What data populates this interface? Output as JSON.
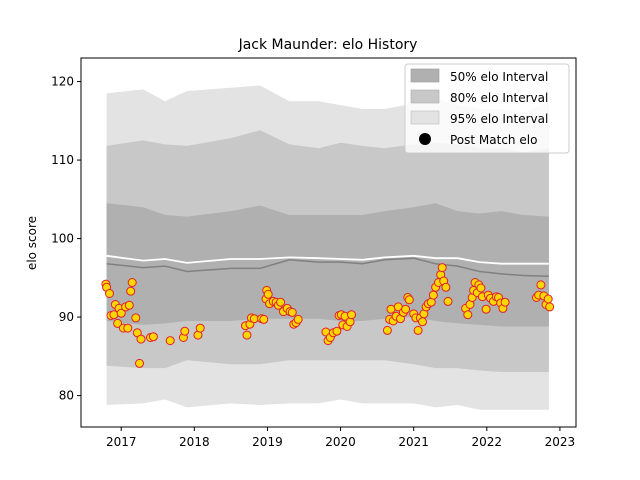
{
  "chart_data": {
    "type": "scatter",
    "title": "Jack Maunder: elo History",
    "xlabel": "",
    "ylabel": "elo score",
    "xlim": [
      2016.45,
      2023.22
    ],
    "ylim": [
      76,
      123
    ],
    "x_ticks": [
      2017,
      2018,
      2019,
      2020,
      2021,
      2022,
      2023
    ],
    "y_ticks": [
      80,
      90,
      100,
      110,
      120
    ],
    "grid": false,
    "legend_position": "top-right",
    "legend": [
      {
        "label": "50% elo Interval",
        "kind": "band",
        "color": "#b0b0b0"
      },
      {
        "label": "80% elo Interval",
        "kind": "band",
        "color": "#c8c8c8"
      },
      {
        "label": "95% elo Interval",
        "kind": "band",
        "color": "#e3e3e3"
      },
      {
        "label": "Post Match elo",
        "kind": "marker",
        "color": "#000000"
      }
    ],
    "colors": {
      "band50": "#b0b0b0",
      "band80": "#c8c8c8",
      "band95": "#e3e3e3",
      "dark_line": "#808080",
      "mean_line": "#ffffff",
      "point_fill": "#ffd700",
      "point_edge": "#e0202a"
    },
    "bands": {
      "x": [
        2016.8,
        2017.3,
        2017.6,
        2017.9,
        2018.5,
        2018.9,
        2019.3,
        2019.7,
        2020.0,
        2020.3,
        2020.6,
        2021.0,
        2021.3,
        2021.6,
        2021.9,
        2022.2,
        2022.5,
        2022.85
      ],
      "band95_upper": [
        118.5,
        119.0,
        117.5,
        118.8,
        119.2,
        119.5,
        117.5,
        117.5,
        117.0,
        116.5,
        116.5,
        117.2,
        117.8,
        117.0,
        116.5,
        116.5,
        116.0,
        117.5
      ],
      "band95_lower": [
        78.8,
        79.0,
        79.5,
        78.5,
        79.0,
        78.8,
        79.0,
        79.0,
        79.5,
        79.0,
        79.0,
        79.0,
        78.5,
        78.8,
        78.2,
        78.2,
        78.2,
        78.2
      ],
      "band80_upper": [
        111.8,
        112.5,
        112.0,
        111.8,
        112.8,
        113.8,
        112.0,
        111.5,
        112.2,
        111.8,
        111.5,
        112.0,
        112.2,
        112.0,
        111.5,
        111.5,
        111.0,
        111.5
      ],
      "band80_lower": [
        83.8,
        83.5,
        83.5,
        84.5,
        84.0,
        84.0,
        84.5,
        84.5,
        84.5,
        84.5,
        84.5,
        84.0,
        83.5,
        83.5,
        83.2,
        83.0,
        83.0,
        83.0
      ],
      "band50_upper": [
        104.5,
        104.0,
        103.0,
        102.8,
        103.5,
        104.2,
        103.0,
        103.0,
        103.0,
        103.0,
        103.5,
        104.0,
        104.5,
        103.5,
        103.2,
        103.5,
        103.0,
        102.8
      ],
      "band50_lower": [
        89.5,
        89.0,
        89.2,
        89.5,
        89.5,
        89.8,
        89.8,
        89.8,
        89.5,
        89.5,
        89.8,
        90.0,
        89.5,
        89.2,
        89.0,
        88.8,
        88.8,
        88.8
      ],
      "dark_line": [
        96.8,
        96.3,
        96.5,
        95.8,
        96.2,
        96.2,
        97.3,
        97.0,
        97.0,
        96.8,
        97.3,
        97.5,
        96.8,
        96.5,
        95.8,
        95.5,
        95.3,
        95.2
      ],
      "mean_line": [
        97.8,
        97.2,
        97.4,
        96.9,
        97.4,
        97.4,
        97.6,
        97.5,
        97.4,
        97.3,
        97.6,
        97.8,
        97.5,
        97.5,
        97.0,
        96.8,
        96.8,
        96.8
      ]
    },
    "series": [
      {
        "name": "Post Match elo",
        "points": [
          [
            2016.79,
            94.2
          ],
          [
            2016.8,
            93.8
          ],
          [
            2016.84,
            93.0
          ],
          [
            2016.86,
            90.2
          ],
          [
            2016.9,
            90.3
          ],
          [
            2016.92,
            91.6
          ],
          [
            2016.95,
            89.2
          ],
          [
            2016.97,
            91.1
          ],
          [
            2017.0,
            90.5
          ],
          [
            2017.03,
            88.6
          ],
          [
            2017.06,
            91.3
          ],
          [
            2017.09,
            88.6
          ],
          [
            2017.11,
            91.5
          ],
          [
            2017.13,
            93.3
          ],
          [
            2017.15,
            94.4
          ],
          [
            2017.2,
            89.9
          ],
          [
            2017.22,
            88.0
          ],
          [
            2017.25,
            84.1
          ],
          [
            2017.27,
            87.2
          ],
          [
            2017.4,
            87.4
          ],
          [
            2017.44,
            87.5
          ],
          [
            2017.67,
            87.0
          ],
          [
            2017.85,
            87.4
          ],
          [
            2017.87,
            88.2
          ],
          [
            2018.05,
            87.7
          ],
          [
            2018.08,
            88.6
          ],
          [
            2018.7,
            88.9
          ],
          [
            2018.72,
            87.7
          ],
          [
            2018.76,
            89.1
          ],
          [
            2018.78,
            89.9
          ],
          [
            2018.82,
            89.8
          ],
          [
            2018.92,
            89.8
          ],
          [
            2018.95,
            89.7
          ],
          [
            2018.98,
            92.3
          ],
          [
            2018.99,
            93.4
          ],
          [
            2019.01,
            92.9
          ],
          [
            2019.03,
            91.7
          ],
          [
            2019.08,
            92.0
          ],
          [
            2019.12,
            91.9
          ],
          [
            2019.15,
            91.5
          ],
          [
            2019.18,
            91.9
          ],
          [
            2019.22,
            90.7
          ],
          [
            2019.27,
            91.1
          ],
          [
            2019.31,
            90.7
          ],
          [
            2019.34,
            90.6
          ],
          [
            2019.36,
            89.1
          ],
          [
            2019.39,
            89.3
          ],
          [
            2019.42,
            89.7
          ],
          [
            2019.8,
            88.1
          ],
          [
            2019.83,
            87.0
          ],
          [
            2019.86,
            87.4
          ],
          [
            2019.9,
            88.0
          ],
          [
            2019.95,
            88.2
          ],
          [
            2019.98,
            90.2
          ],
          [
            2020.01,
            90.3
          ],
          [
            2020.03,
            89.0
          ],
          [
            2020.06,
            90.1
          ],
          [
            2020.09,
            88.8
          ],
          [
            2020.13,
            89.4
          ],
          [
            2020.15,
            90.3
          ],
          [
            2020.64,
            88.3
          ],
          [
            2020.67,
            89.7
          ],
          [
            2020.69,
            91.0
          ],
          [
            2020.72,
            89.5
          ],
          [
            2020.76,
            90.1
          ],
          [
            2020.79,
            91.3
          ],
          [
            2020.82,
            89.8
          ],
          [
            2020.86,
            90.6
          ],
          [
            2020.89,
            91.0
          ],
          [
            2020.92,
            92.5
          ],
          [
            2020.94,
            92.2
          ],
          [
            2021.0,
            90.4
          ],
          [
            2021.03,
            89.9
          ],
          [
            2021.06,
            88.3
          ],
          [
            2021.09,
            89.9
          ],
          [
            2021.12,
            89.4
          ],
          [
            2021.14,
            90.4
          ],
          [
            2021.17,
            91.3
          ],
          [
            2021.2,
            91.7
          ],
          [
            2021.24,
            91.9
          ],
          [
            2021.27,
            92.8
          ],
          [
            2021.3,
            93.8
          ],
          [
            2021.34,
            94.4
          ],
          [
            2021.37,
            95.4
          ],
          [
            2021.39,
            96.3
          ],
          [
            2021.41,
            94.6
          ],
          [
            2021.44,
            93.8
          ],
          [
            2021.47,
            92.0
          ],
          [
            2021.71,
            91.1
          ],
          [
            2021.74,
            90.3
          ],
          [
            2021.77,
            91.6
          ],
          [
            2021.8,
            92.5
          ],
          [
            2021.82,
            93.4
          ],
          [
            2021.84,
            94.4
          ],
          [
            2021.87,
            93.1
          ],
          [
            2021.89,
            94.1
          ],
          [
            2021.92,
            93.7
          ],
          [
            2021.94,
            92.6
          ],
          [
            2021.99,
            91.0
          ],
          [
            2022.02,
            92.8
          ],
          [
            2022.05,
            92.4
          ],
          [
            2022.09,
            92.0
          ],
          [
            2022.13,
            92.6
          ],
          [
            2022.16,
            92.5
          ],
          [
            2022.19,
            91.8
          ],
          [
            2022.22,
            91.1
          ],
          [
            2022.25,
            91.9
          ],
          [
            2022.68,
            92.5
          ],
          [
            2022.71,
            92.8
          ],
          [
            2022.74,
            94.1
          ],
          [
            2022.78,
            92.7
          ],
          [
            2022.81,
            91.6
          ],
          [
            2022.84,
            92.3
          ],
          [
            2022.86,
            91.3
          ]
        ]
      }
    ]
  }
}
